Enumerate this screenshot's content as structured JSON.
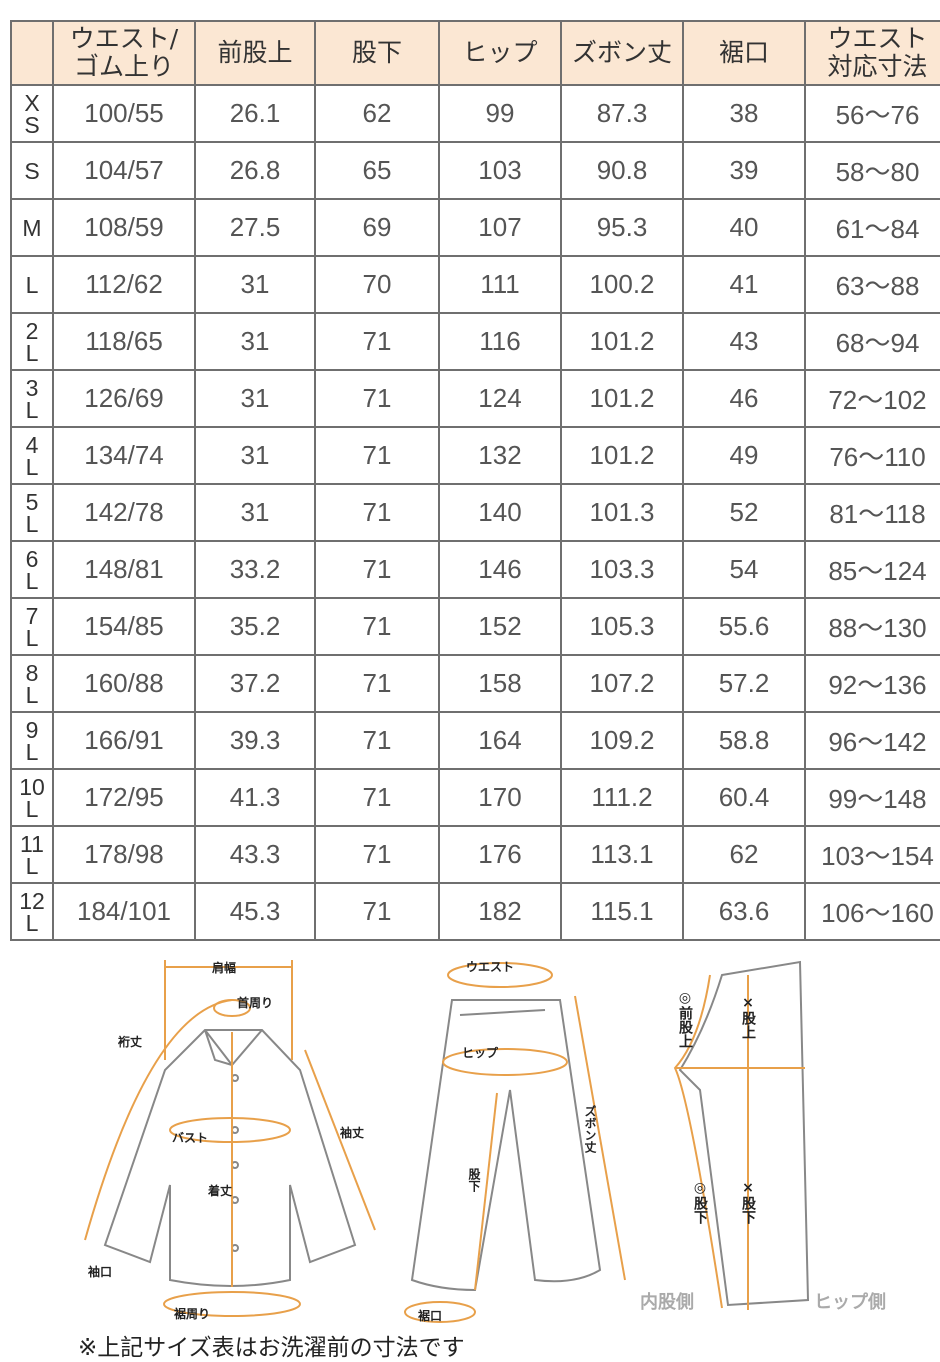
{
  "table": {
    "headers": [
      "",
      "ウエスト/\nゴム上り",
      "前股上",
      "股下",
      "ヒップ",
      "ズボン丈",
      "裾口",
      "ウエスト\n対応寸法"
    ],
    "rows": [
      [
        "XS",
        "100/55",
        "26.1",
        "62",
        "99",
        "87.3",
        "38",
        "56～76"
      ],
      [
        "S",
        "104/57",
        "26.8",
        "65",
        "103",
        "90.8",
        "39",
        "58～80"
      ],
      [
        "M",
        "108/59",
        "27.5",
        "69",
        "107",
        "95.3",
        "40",
        "61～84"
      ],
      [
        "L",
        "112/62",
        "31",
        "70",
        "111",
        "100.2",
        "41",
        "63～88"
      ],
      [
        "2L",
        "118/65",
        "31",
        "71",
        "116",
        "101.2",
        "43",
        "68～94"
      ],
      [
        "3L",
        "126/69",
        "31",
        "71",
        "124",
        "101.2",
        "46",
        "72～102"
      ],
      [
        "4L",
        "134/74",
        "31",
        "71",
        "132",
        "101.2",
        "49",
        "76～110"
      ],
      [
        "5L",
        "142/78",
        "31",
        "71",
        "140",
        "101.3",
        "52",
        "81～118"
      ],
      [
        "6L",
        "148/81",
        "33.2",
        "71",
        "146",
        "103.3",
        "54",
        "85～124"
      ],
      [
        "7L",
        "154/85",
        "35.2",
        "71",
        "152",
        "105.3",
        "55.6",
        "88～130"
      ],
      [
        "8L",
        "160/88",
        "37.2",
        "71",
        "158",
        "107.2",
        "57.2",
        "92～136"
      ],
      [
        "9L",
        "166/91",
        "39.3",
        "71",
        "164",
        "109.2",
        "58.8",
        "96～142"
      ],
      [
        "10L",
        "172/95",
        "41.3",
        "71",
        "170",
        "111.2",
        "60.4",
        "99～148"
      ],
      [
        "11L",
        "178/98",
        "43.3",
        "71",
        "176",
        "113.1",
        "62",
        "103～154"
      ],
      [
        "12L",
        "184/101",
        "45.3",
        "71",
        "182",
        "115.1",
        "63.6",
        "106～160"
      ]
    ]
  },
  "diagram": {
    "shirt": {
      "shoulder": "肩幅",
      "neck": "首周り",
      "yuki": "裄丈",
      "sleeve": "袖丈",
      "bust": "バスト",
      "length": "着丈",
      "cuff": "袖口",
      "hem": "裾周り"
    },
    "pants": {
      "waist": "ウエスト",
      "hip": "ヒップ",
      "length": "ズボン丈",
      "inseam": "股下",
      "hem": "裾口"
    },
    "side": {
      "front_rise": "◎前股上",
      "rise": "×股上",
      "inseam_inner": "◎股下",
      "inseam": "×股下",
      "inner": "内股側",
      "hip_side": "ヒップ側"
    }
  },
  "colors": {
    "header_bg": "#fbe7d3",
    "accent": "#e8a04a"
  },
  "note": "※上記サイズ表はお洗濯前の寸法です"
}
